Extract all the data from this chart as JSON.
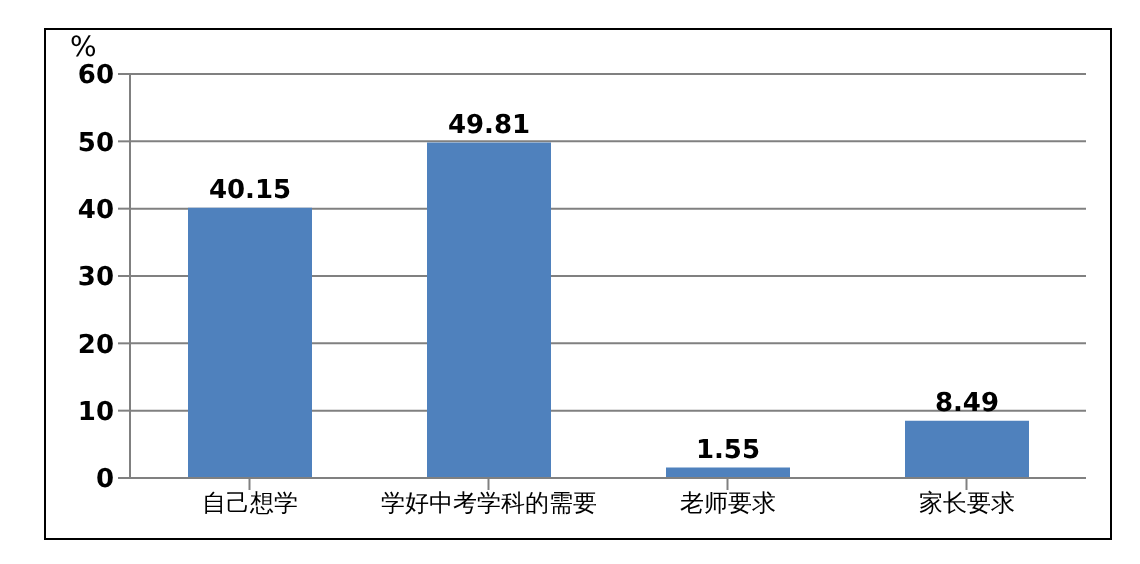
{
  "chart_data": {
    "type": "bar",
    "ylabel": "%",
    "categories": [
      "自己想学",
      "学好中考学科的需要",
      "老师要求",
      "家长要求"
    ],
    "values": [
      40.15,
      49.81,
      1.55,
      8.49
    ],
    "color": "#4f81bd",
    "ylim": [
      0,
      60
    ],
    "yticks": [
      0,
      10,
      20,
      30,
      40,
      50,
      60
    ],
    "grid": "y",
    "data_labels": true
  }
}
